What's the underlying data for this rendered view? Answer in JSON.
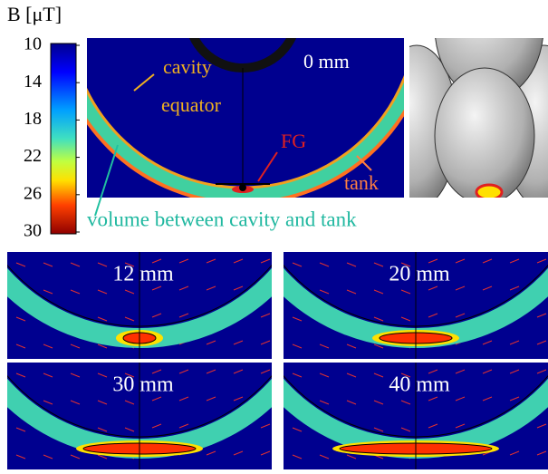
{
  "colorbar": {
    "title": "B [μT]",
    "ticks": [
      10,
      14,
      18,
      22,
      26,
      30
    ],
    "range": [
      10,
      30
    ]
  },
  "main_panel": {
    "label": "0 mm",
    "annotations": {
      "cavity": "cavity",
      "equator": "equator",
      "fg": "FG",
      "tank": "tank",
      "volume": "volume between cavity and tank"
    }
  },
  "panels": [
    "12 mm",
    "20 mm",
    "30 mm",
    "40 mm"
  ]
}
